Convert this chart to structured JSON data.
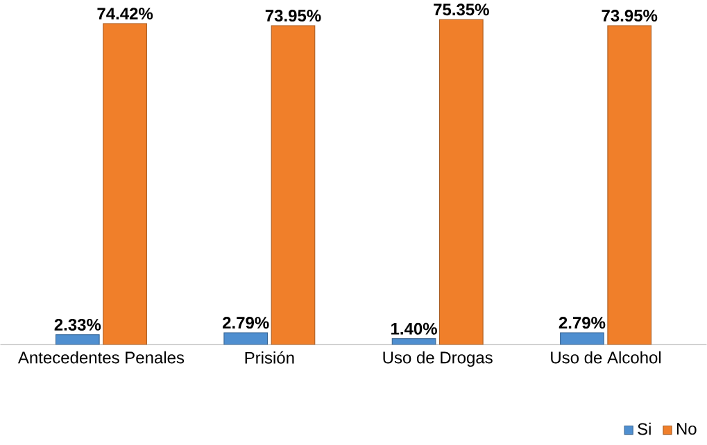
{
  "chart_data": {
    "type": "bar",
    "categories": [
      "Antecedentes Penales",
      "Prisión",
      "Uso de Drogas",
      "Uso de Alcohol"
    ],
    "series": [
      {
        "name": "Si",
        "color": "#4f8fd0",
        "values": [
          2.33,
          2.79,
          1.4,
          2.79
        ],
        "value_labels": [
          "2.33%",
          "2.79%",
          "1.40%",
          "2.79%"
        ]
      },
      {
        "name": "No",
        "color": "#f07f2a",
        "values": [
          74.42,
          73.95,
          75.35,
          73.95
        ],
        "value_labels": [
          "74.42%",
          "73.95%",
          "75.35%",
          "73.95%"
        ]
      }
    ],
    "legend": "bottom right"
  }
}
